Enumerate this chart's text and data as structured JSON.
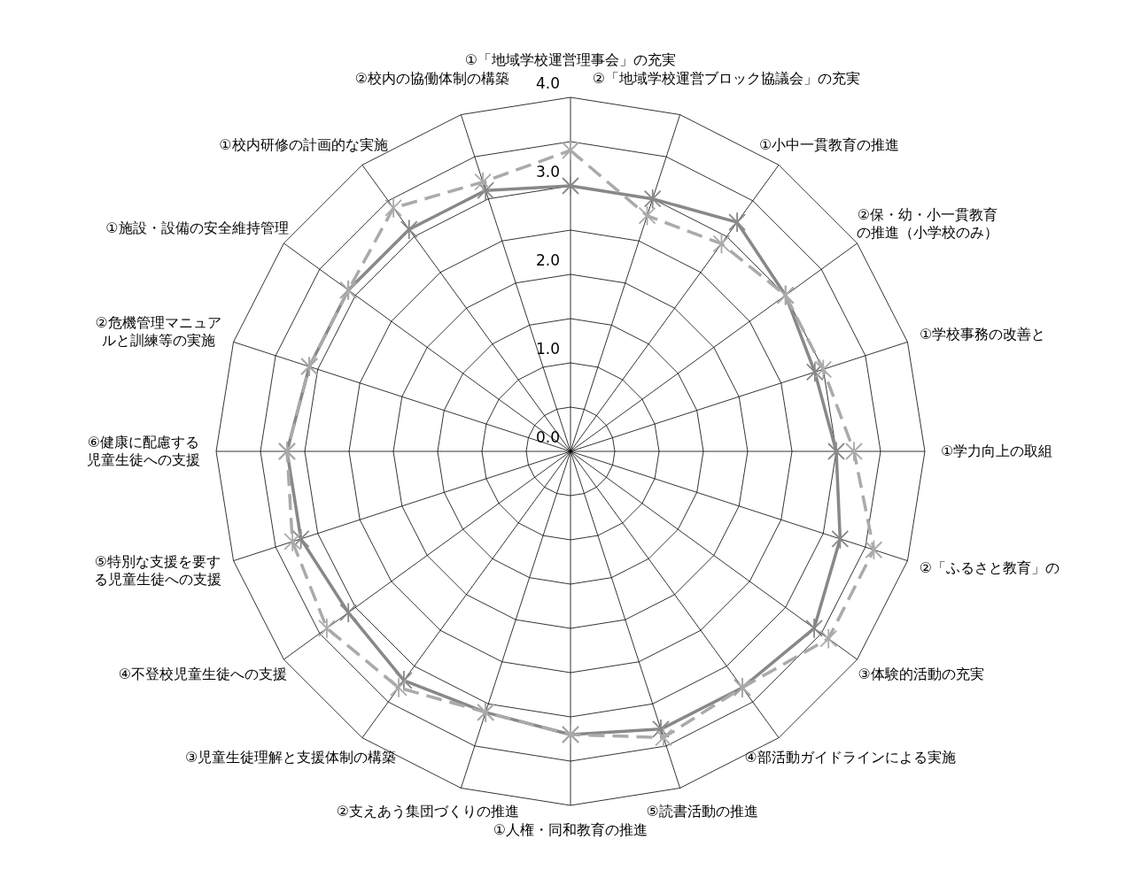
{
  "chart_data": {
    "type": "radar",
    "categories": [
      "①「地域学校運営理事会」の充実",
      "②「地域学校運営ブロック協議会」の充実",
      "①小中一貫教育の推進",
      "②保・幼・小一貫教育の推進（小学校のみ）",
      "①学校事務の改善と",
      "①学力向上の取組",
      "②「ふるさと教育」の",
      "③体験的活動の充実",
      "④部活動ガイドラインによる実施",
      "⑤読書活動の推進",
      "①人権・同和教育の推進",
      "②支えあう集団づくりの推進",
      "③児童生徒理解と支援体制の構築",
      "④不登校児童生徒への支援",
      "⑤特別な支援を要する児童生徒への支援",
      "⑥健康に配慮する児童生徒への支援",
      "②危機管理マニュアルと訓練等の実施",
      "①施設・設備の安全維持管理",
      "①校内研修の計画的な実施",
      "②校内の協働体制の構築"
    ],
    "series": [
      {
        "color": "#888888",
        "line_style": "solid",
        "values": [
          3.0,
          3.0,
          3.2,
          3.0,
          2.9,
          3.0,
          3.2,
          3.4,
          3.3,
          3.3,
          3.2,
          3.1,
          3.2,
          3.1,
          3.2,
          3.2,
          3.1,
          3.1,
          3.1,
          3.1
        ]
      },
      {
        "color": "#aaaaaa",
        "line_style": "dashed",
        "values": [
          3.4,
          2.8,
          2.9,
          3.0,
          3.0,
          3.2,
          3.6,
          3.6,
          3.3,
          3.4,
          3.2,
          3.1,
          3.3,
          3.4,
          3.3,
          3.2,
          3.1,
          3.1,
          3.4,
          3.2
        ]
      }
    ],
    "marker": "cross",
    "ylim": [
      0,
      4
    ],
    "yticks": [
      {
        "value": 0,
        "label": "0.0"
      },
      {
        "value": 1,
        "label": "1.0"
      },
      {
        "value": 2,
        "label": "2.0"
      },
      {
        "value": 3,
        "label": "3.0"
      },
      {
        "value": 4,
        "label": "4.0"
      }
    ],
    "grid": true
  }
}
